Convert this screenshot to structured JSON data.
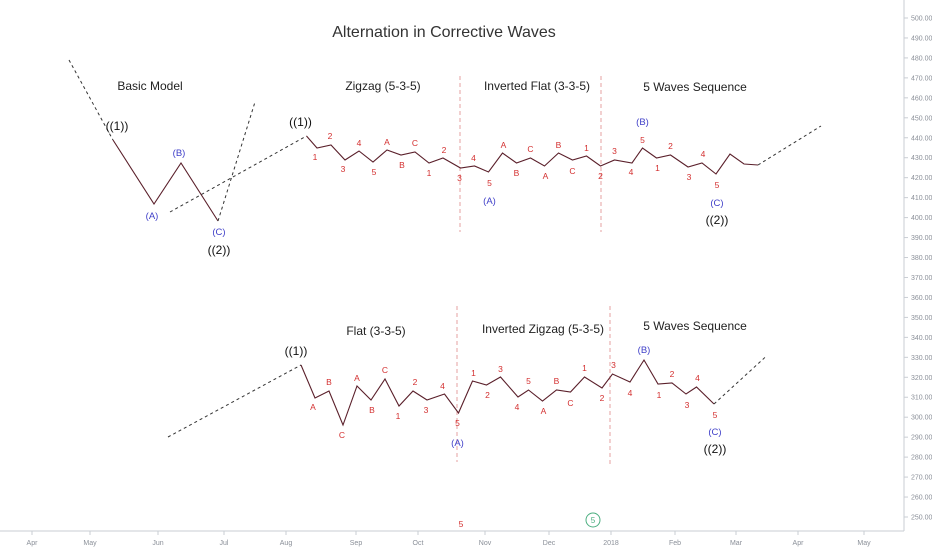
{
  "chart_data": {
    "type": "line",
    "title": "Alternation in Corrective Waves",
    "colors": {
      "wave": "#5a1f2a",
      "label": "#d32f2f",
      "degree_label": "#3f3fc8",
      "degree_major": "#111111",
      "divider": "#e5a0a0",
      "axis": "#8a8f98",
      "marker": "#4caf80"
    },
    "x_axis": {
      "ticks": [
        "Apr",
        "May",
        "Jun",
        "Jul",
        "Aug",
        "Sep",
        "Oct",
        "Nov",
        "Dec",
        "2018",
        "Feb",
        "Mar",
        "Apr",
        "May"
      ]
    },
    "y_axis": {
      "side": "right",
      "min": 250,
      "max": 500,
      "step": 10,
      "ticks": [
        "250.00",
        "260.00",
        "270.00",
        "280.00",
        "290.00",
        "300.00",
        "310.00",
        "320.00",
        "330.00",
        "340.00",
        "350.00",
        "360.00",
        "370.00",
        "380.00",
        "390.00",
        "400.00",
        "410.00",
        "420.00",
        "430.00",
        "440.00",
        "450.00",
        "460.00",
        "470.00",
        "480.00",
        "490.00",
        "500.00"
      ]
    },
    "section_titles": [
      {
        "id": "basic",
        "text": "Basic Model"
      },
      {
        "id": "zigzag",
        "text": "Zigzag (5-3-5)"
      },
      {
        "id": "inv_flat",
        "text": "Inverted Flat (3-3-5)"
      },
      {
        "id": "five_top",
        "text": "5 Waves Sequence"
      },
      {
        "id": "flat",
        "text": "Flat (3-3-5)"
      },
      {
        "id": "inv_zigzag",
        "text": "Inverted Zigzag (5-3-5)"
      },
      {
        "id": "five_bot",
        "text": "5 Waves Sequence"
      }
    ],
    "bottom_markers": {
      "count_label": "5",
      "circle_label": "5"
    },
    "series": [
      {
        "id": "basic",
        "points": [
          [
            39,
            140
          ],
          [
            80,
            204
          ],
          [
            107,
            163
          ],
          [
            144,
            221
          ]
        ],
        "lead_dashed": [
          [
            -5,
            60
          ],
          [
            39,
            140
          ]
        ],
        "trail_dashed": [
          [
            144,
            221
          ],
          [
            181,
            102
          ]
        ],
        "labels": [
          {
            "text": "((1))",
            "i": 0,
            "cls": "klab",
            "dx": 4,
            "dy": -13
          },
          {
            "text": "(A)",
            "i": 1,
            "cls": "blab",
            "dx": -2,
            "dy": 12
          },
          {
            "text": "(B)",
            "i": 2,
            "cls": "blab",
            "dx": -2,
            "dy": -10
          },
          {
            "text": "(C)",
            "i": 3,
            "cls": "blab",
            "dx": 1,
            "dy": 11
          },
          {
            "text": "((2))",
            "i": 3,
            "cls": "klab",
            "dx": 1,
            "dy": 30
          }
        ]
      },
      {
        "id": "top_walk",
        "points": [
          [
            89,
            124
          ],
          [
            92,
            136
          ],
          [
            96,
            133
          ],
          [
            100,
            148
          ],
          [
            104,
            139
          ],
          [
            108,
            150
          ],
          [
            112,
            138
          ],
          [
            116,
            143
          ],
          [
            120,
            140
          ],
          [
            124,
            151
          ],
          [
            128,
            146
          ],
          [
            133,
            156
          ],
          [
            137,
            154
          ],
          [
            141,
            160
          ],
          [
            145,
            141
          ],
          [
            149,
            151
          ],
          [
            153,
            146
          ],
          [
            157,
            154
          ],
          [
            161,
            141
          ],
          [
            165,
            148
          ],
          [
            169,
            144
          ],
          [
            173,
            154
          ],
          [
            177,
            148
          ],
          [
            182,
            151
          ],
          [
            185,
            136
          ],
          [
            189,
            146
          ],
          [
            193,
            143
          ],
          [
            198,
            155
          ],
          [
            202,
            151
          ],
          [
            206,
            162
          ],
          [
            210,
            142
          ],
          [
            214,
            152
          ],
          [
            218,
            153
          ]
        ],
        "lead_dashed": [
          [
            50,
            200
          ],
          [
            89,
            124
          ]
        ],
        "trail_dashed": [
          [
            218,
            153
          ],
          [
            236,
            114
          ]
        ],
        "labels": [
          {
            "text": "((1))",
            "i": 0,
            "cls": "klab",
            "dx": -6,
            "dy": -13
          },
          {
            "text": "1",
            "i": 1,
            "cls": "wlab",
            "dx": -2,
            "dy": 9
          },
          {
            "text": "2",
            "i": 2,
            "cls": "wlab",
            "dx": -1,
            "dy": -9
          },
          {
            "text": "3",
            "i": 3,
            "cls": "wlab",
            "dx": -2,
            "dy": 9
          },
          {
            "text": "4",
            "i": 4,
            "cls": "wlab",
            "dx": 0,
            "dy": -8
          },
          {
            "text": "5",
            "i": 5,
            "cls": "wlab",
            "dx": 1,
            "dy": 10
          },
          {
            "text": "A",
            "i": 6,
            "cls": "wlab",
            "dx": 0,
            "dy": -8
          },
          {
            "text": "B",
            "i": 7,
            "cls": "wlab",
            "dx": 1,
            "dy": 10
          },
          {
            "text": "C",
            "i": 8,
            "cls": "wlab",
            "dx": 0,
            "dy": -9
          },
          {
            "text": "1",
            "i": 9,
            "cls": "wlab",
            "dx": 0,
            "dy": 10
          },
          {
            "text": "2",
            "i": 10,
            "cls": "wlab",
            "dx": 1,
            "dy": -8
          },
          {
            "text": "3",
            "i": 11,
            "cls": "wlab",
            "dx": -1,
            "dy": 10
          },
          {
            "text": "4",
            "i": 12,
            "cls": "wlab",
            "dx": -1,
            "dy": -8
          },
          {
            "text": "5",
            "i": 13,
            "cls": "wlab",
            "dx": 1,
            "dy": 11
          },
          {
            "text": "(A)",
            "i": 13,
            "cls": "blab",
            "dx": 1,
            "dy": 29
          },
          {
            "text": "A",
            "i": 14,
            "cls": "wlab",
            "dx": 1,
            "dy": -8
          },
          {
            "text": "B",
            "i": 15,
            "cls": "wlab",
            "dx": 0,
            "dy": 10
          },
          {
            "text": "C",
            "i": 16,
            "cls": "wlab",
            "dx": 0,
            "dy": -9
          },
          {
            "text": "A",
            "i": 17,
            "cls": "wlab",
            "dx": 1,
            "dy": 10
          },
          {
            "text": "B",
            "i": 18,
            "cls": "wlab",
            "dx": 0,
            "dy": -8
          },
          {
            "text": "C",
            "i": 19,
            "cls": "wlab",
            "dx": 0,
            "dy": 11
          },
          {
            "text": "1",
            "i": 20,
            "cls": "wlab",
            "dx": 0,
            "dy": -8
          },
          {
            "text": "2",
            "i": 21,
            "cls": "wlab",
            "dx": 0,
            "dy": 10
          },
          {
            "text": "3",
            "i": 22,
            "cls": "wlab",
            "dx": 0,
            "dy": -9
          },
          {
            "text": "4",
            "i": 23,
            "cls": "wlab",
            "dx": -1,
            "dy": 9
          },
          {
            "text": "5",
            "i": 24,
            "cls": "wlab",
            "dx": 0,
            "dy": -8
          },
          {
            "text": "(B)",
            "i": 24,
            "cls": "blab",
            "dx": 0,
            "dy": -26
          },
          {
            "text": "1",
            "i": 25,
            "cls": "wlab",
            "dx": 1,
            "dy": 10
          },
          {
            "text": "2",
            "i": 26,
            "cls": "wlab",
            "dx": 0,
            "dy": -9
          },
          {
            "text": "3",
            "i": 27,
            "cls": "wlab",
            "dx": 1,
            "dy": 10
          },
          {
            "text": "4",
            "i": 28,
            "cls": "wlab",
            "dx": 1,
            "dy": -9
          },
          {
            "text": "5",
            "i": 29,
            "cls": "wlab",
            "dx": 1,
            "dy": 11
          },
          {
            "text": "(C)",
            "i": 29,
            "cls": "blab",
            "dx": 1,
            "dy": 29
          },
          {
            "text": "((2))",
            "i": 29,
            "cls": "klab",
            "dx": 1,
            "dy": 47
          }
        ]
      },
      {
        "id": "bot_walk",
        "points": [
          [
            88,
            328
          ],
          [
            92,
            361
          ],
          [
            96,
            354
          ],
          [
            100,
            388
          ],
          [
            104,
            349
          ],
          [
            108,
            363
          ],
          [
            112,
            342
          ],
          [
            116,
            369
          ],
          [
            120,
            354
          ],
          [
            124,
            363
          ],
          [
            129,
            357
          ],
          [
            133,
            376
          ],
          [
            137,
            344
          ],
          [
            141,
            348
          ],
          [
            145,
            340
          ],
          [
            150,
            360
          ],
          [
            153,
            353
          ],
          [
            157,
            364
          ],
          [
            161,
            353
          ],
          [
            165,
            355
          ],
          [
            169,
            340
          ],
          [
            174,
            351
          ],
          [
            177,
            337
          ],
          [
            182,
            345
          ],
          [
            186,
            323
          ],
          [
            190,
            347
          ],
          [
            194,
            346
          ],
          [
            198,
            357
          ],
          [
            201,
            350
          ],
          [
            206,
            367
          ]
        ],
        "lead_dashed": [
          [
            50,
            400
          ],
          [
            88,
            328
          ]
        ],
        "trail_dashed": [
          [
            206,
            367
          ],
          [
            221,
            319
          ]
        ],
        "labels": [
          {
            "text": "((1))",
            "i": 0,
            "cls": "klab",
            "dx": -5,
            "dy": -13
          },
          {
            "text": "A",
            "i": 1,
            "cls": "wlab",
            "dx": -2,
            "dy": 9
          },
          {
            "text": "B",
            "i": 2,
            "cls": "wlab",
            "dx": 0,
            "dy": -9
          },
          {
            "text": "C",
            "i": 3,
            "cls": "wlab",
            "dx": -1,
            "dy": 10
          },
          {
            "text": "A",
            "i": 4,
            "cls": "wlab",
            "dx": 0,
            "dy": -8
          },
          {
            "text": "B",
            "i": 5,
            "cls": "wlab",
            "dx": 1,
            "dy": 10
          },
          {
            "text": "C",
            "i": 6,
            "cls": "wlab",
            "dx": 0,
            "dy": -9
          },
          {
            "text": "1",
            "i": 7,
            "cls": "wlab",
            "dx": -1,
            "dy": 10
          },
          {
            "text": "2",
            "i": 8,
            "cls": "wlab",
            "dx": 2,
            "dy": -9
          },
          {
            "text": "3",
            "i": 9,
            "cls": "wlab",
            "dx": -1,
            "dy": 10
          },
          {
            "text": "4",
            "i": 10,
            "cls": "wlab",
            "dx": -2,
            "dy": -8
          },
          {
            "text": "5",
            "i": 11,
            "cls": "wlab",
            "dx": -1,
            "dy": 10
          },
          {
            "text": "(A)",
            "i": 11,
            "cls": "blab",
            "dx": -1,
            "dy": 30
          },
          {
            "text": "1",
            "i": 12,
            "cls": "wlab",
            "dx": 1,
            "dy": -8
          },
          {
            "text": "2",
            "i": 13,
            "cls": "wlab",
            "dx": 1,
            "dy": 10
          },
          {
            "text": "3",
            "i": 14,
            "cls": "wlab",
            "dx": 0,
            "dy": -8
          },
          {
            "text": "4",
            "i": 15,
            "cls": "wlab",
            "dx": -1,
            "dy": 10
          },
          {
            "text": "5",
            "i": 16,
            "cls": "wlab",
            "dx": 0,
            "dy": -9
          },
          {
            "text": "A",
            "i": 17,
            "cls": "wlab",
            "dx": 1,
            "dy": 10
          },
          {
            "text": "B",
            "i": 18,
            "cls": "wlab",
            "dx": 0,
            "dy": -9
          },
          {
            "text": "C",
            "i": 19,
            "cls": "wlab",
            "dx": 0,
            "dy": 11
          },
          {
            "text": "1",
            "i": 20,
            "cls": "wlab",
            "dx": 0,
            "dy": -9
          },
          {
            "text": "2",
            "i": 21,
            "cls": "wlab",
            "dx": 0,
            "dy": 10
          },
          {
            "text": "3",
            "i": 22,
            "cls": "wlab",
            "dx": 1,
            "dy": -9
          },
          {
            "text": "4",
            "i": 23,
            "cls": "wlab",
            "dx": 0,
            "dy": 11
          },
          {
            "text": "(B)",
            "i": 24,
            "cls": "blab",
            "dx": 0,
            "dy": -10
          },
          {
            "text": "1",
            "i": 25,
            "cls": "wlab",
            "dx": 1,
            "dy": 11
          },
          {
            "text": "2",
            "i": 26,
            "cls": "wlab",
            "dx": 0,
            "dy": -9
          },
          {
            "text": "3",
            "i": 27,
            "cls": "wlab",
            "dx": 1,
            "dy": 11
          },
          {
            "text": "4",
            "i": 28,
            "cls": "wlab",
            "dx": 1,
            "dy": -9
          },
          {
            "text": "5",
            "i": 29,
            "cls": "wlab",
            "dx": 1,
            "dy": 11
          },
          {
            "text": "(C)",
            "i": 29,
            "cls": "blab",
            "dx": 1,
            "dy": 28
          },
          {
            "text": "((2))",
            "i": 29,
            "cls": "klab",
            "dx": 1,
            "dy": 46
          }
        ]
      }
    ]
  }
}
